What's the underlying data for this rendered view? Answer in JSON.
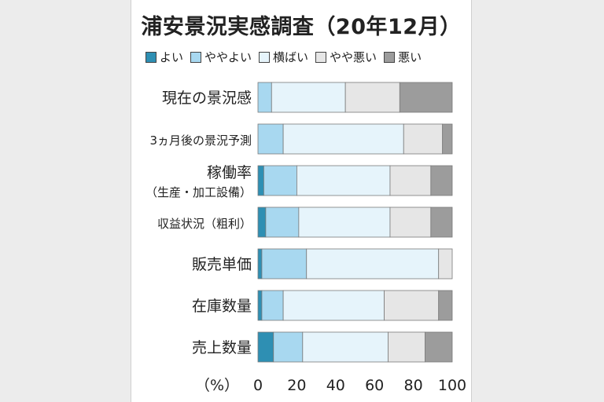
{
  "chart_data": {
    "type": "bar",
    "orientation": "horizontal",
    "stacked": true,
    "title": "浦安景況実感調査（20年12月）",
    "unit_label": "（%）",
    "xlim": [
      0,
      100
    ],
    "xticks": [
      "0",
      "20",
      "40",
      "60",
      "80",
      "100"
    ],
    "legend_position": "top",
    "series": [
      {
        "name": "よい",
        "color": "#2e8fb3"
      },
      {
        "name": "ややよい",
        "color": "#a8d8f0"
      },
      {
        "name": "横ばい",
        "color": "#e6f4fb"
      },
      {
        "name": "やや悪い",
        "color": "#e6e6e6"
      },
      {
        "name": "悪い",
        "color": "#9c9c9c"
      }
    ],
    "categories": [
      {
        "lines": [
          "現在の景況感"
        ],
        "values": [
          0,
          7,
          38,
          28,
          27
        ]
      },
      {
        "lines": [
          "3ヵ月後の景況予測"
        ],
        "values": [
          0,
          13,
          62,
          20,
          5
        ]
      },
      {
        "lines": [
          "稼働率",
          "（生産・加工設備）"
        ],
        "values": [
          3,
          17,
          48,
          21,
          11
        ]
      },
      {
        "lines": [
          "収益状況（粗利）"
        ],
        "values": [
          4,
          17,
          47,
          21,
          11
        ]
      },
      {
        "lines": [
          "販売単価"
        ],
        "values": [
          2,
          23,
          68,
          7,
          0
        ]
      },
      {
        "lines": [
          "在庫数量"
        ],
        "values": [
          2,
          11,
          52,
          28,
          7
        ]
      },
      {
        "lines": [
          "売上数量"
        ],
        "values": [
          8,
          15,
          44,
          19,
          14
        ]
      }
    ]
  }
}
